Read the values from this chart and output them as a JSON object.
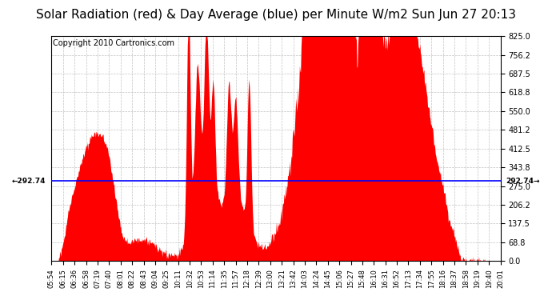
{
  "title": "Solar Radiation (red) & Day Average (blue) per Minute W/m2 Sun Jun 27 20:13",
  "copyright": "Copyright 2010 Cartronics.com",
  "day_average": 292.74,
  "ylim": [
    0.0,
    825.0
  ],
  "yticks": [
    0.0,
    68.8,
    137.5,
    206.2,
    275.0,
    343.8,
    412.5,
    481.2,
    550.0,
    618.8,
    687.5,
    756.2,
    825.0
  ],
  "xtick_labels": [
    "05:54",
    "06:15",
    "06:36",
    "06:58",
    "07:19",
    "07:40",
    "08:01",
    "08:22",
    "08:43",
    "09:04",
    "09:25",
    "10:11",
    "10:32",
    "10:53",
    "11:14",
    "11:35",
    "11:57",
    "12:18",
    "12:39",
    "13:00",
    "13:21",
    "13:42",
    "14:03",
    "14:24",
    "14:45",
    "15:06",
    "15:27",
    "15:48",
    "16:10",
    "16:31",
    "16:52",
    "17:13",
    "17:34",
    "17:55",
    "18:16",
    "18:37",
    "18:58",
    "19:19",
    "19:40",
    "20:01"
  ],
  "fill_color": "#FF0000",
  "line_color": "#0000FF",
  "background_color": "#FFFFFF",
  "grid_color": "#AAAAAA",
  "title_fontsize": 11,
  "copyright_fontsize": 7
}
